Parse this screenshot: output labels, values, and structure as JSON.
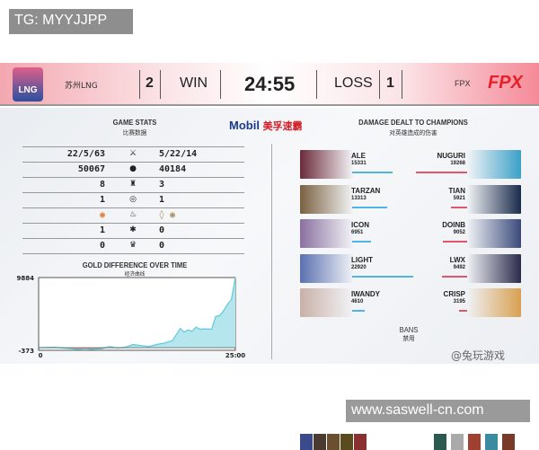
{
  "overlay_label": "TG: MYYJJPP",
  "watermark_url": "www.saswell-cn.com",
  "weibo": "@兔玩游戏",
  "header": {
    "left_team": "苏州LNG",
    "left_logo": "LNG",
    "left_score": "2",
    "left_result": "WIN",
    "time": "24:55",
    "right_result": "LOSS",
    "right_score": "1",
    "right_team": "FPX",
    "right_logo": "FPX"
  },
  "sponsor": {
    "brand": "Mobil",
    "cn": "美孚速霸"
  },
  "game_stats": {
    "title": "GAME STATS",
    "subtitle": "比赛数据",
    "rows": [
      {
        "left": "22/5/63",
        "icon": "kda-icon",
        "glyph": "⚔",
        "right": "5/22/14"
      },
      {
        "left": "50067",
        "icon": "gold-icon",
        "glyph": "●",
        "right": "40184"
      },
      {
        "left": "8",
        "icon": "tower-icon",
        "glyph": "♜",
        "right": "3"
      },
      {
        "left": "1",
        "icon": "inhibitor-icon",
        "glyph": "◎",
        "right": "1"
      },
      {
        "left": "◉",
        "icon": "dragon-icon",
        "glyph": "♨",
        "right": "◊ ◉"
      },
      {
        "left": "1",
        "icon": "herald-icon",
        "glyph": "✱",
        "right": "0"
      },
      {
        "left": "0",
        "icon": "baron-icon",
        "glyph": "♛",
        "right": "0"
      }
    ]
  },
  "chart_data": {
    "type": "area",
    "title": "GOLD DIFFERENCE OVER TIME",
    "subtitle": "经济曲线",
    "xlabel": "",
    "ylabel": "",
    "x_ticks": [
      "0",
      "25:00"
    ],
    "y_ticks": [
      "9884",
      "-373"
    ],
    "xlim": [
      0,
      25
    ],
    "ylim": [
      -373,
      9884
    ],
    "x": [
      0,
      1,
      2,
      3,
      4,
      5,
      6,
      7,
      8,
      9,
      10,
      11,
      12,
      13,
      14,
      15,
      16,
      17,
      18,
      18.5,
      19,
      19.5,
      20,
      20.5,
      21,
      22,
      22.5,
      23,
      23.5,
      24,
      24.5,
      25
    ],
    "y": [
      0,
      20,
      60,
      -40,
      -120,
      -250,
      -300,
      -200,
      -150,
      150,
      -50,
      50,
      450,
      300,
      150,
      450,
      650,
      1000,
      2700,
      2200,
      2500,
      2300,
      2900,
      2600,
      2650,
      2600,
      4400,
      4500,
      5200,
      6100,
      6800,
      9884
    ],
    "colors": {
      "positive": "#5ec9dc",
      "negative": "#d4405a"
    }
  },
  "damage": {
    "title": "DAMAGE DEALT TO CHAMPIONS",
    "subtitle": "对英雄造成的伤害",
    "max": 22920,
    "left": [
      {
        "name": "ALE",
        "value": 15331
      },
      {
        "name": "TARZAN",
        "value": 13313
      },
      {
        "name": "ICON",
        "value": 6951
      },
      {
        "name": "LIGHT",
        "value": 22920
      },
      {
        "name": "IWANDY",
        "value": 4610
      }
    ],
    "right": [
      {
        "name": "NUGURI",
        "value": 19268
      },
      {
        "name": "TIAN",
        "value": 5921
      },
      {
        "name": "DOINB",
        "value": 9052
      },
      {
        "name": "LWX",
        "value": 9492
      },
      {
        "name": "CRISP",
        "value": 3195
      }
    ],
    "colors": {
      "left": "#4fb3e6",
      "right": "#e0566a"
    }
  },
  "bans": {
    "label": "BANS",
    "sub": "禁用"
  }
}
